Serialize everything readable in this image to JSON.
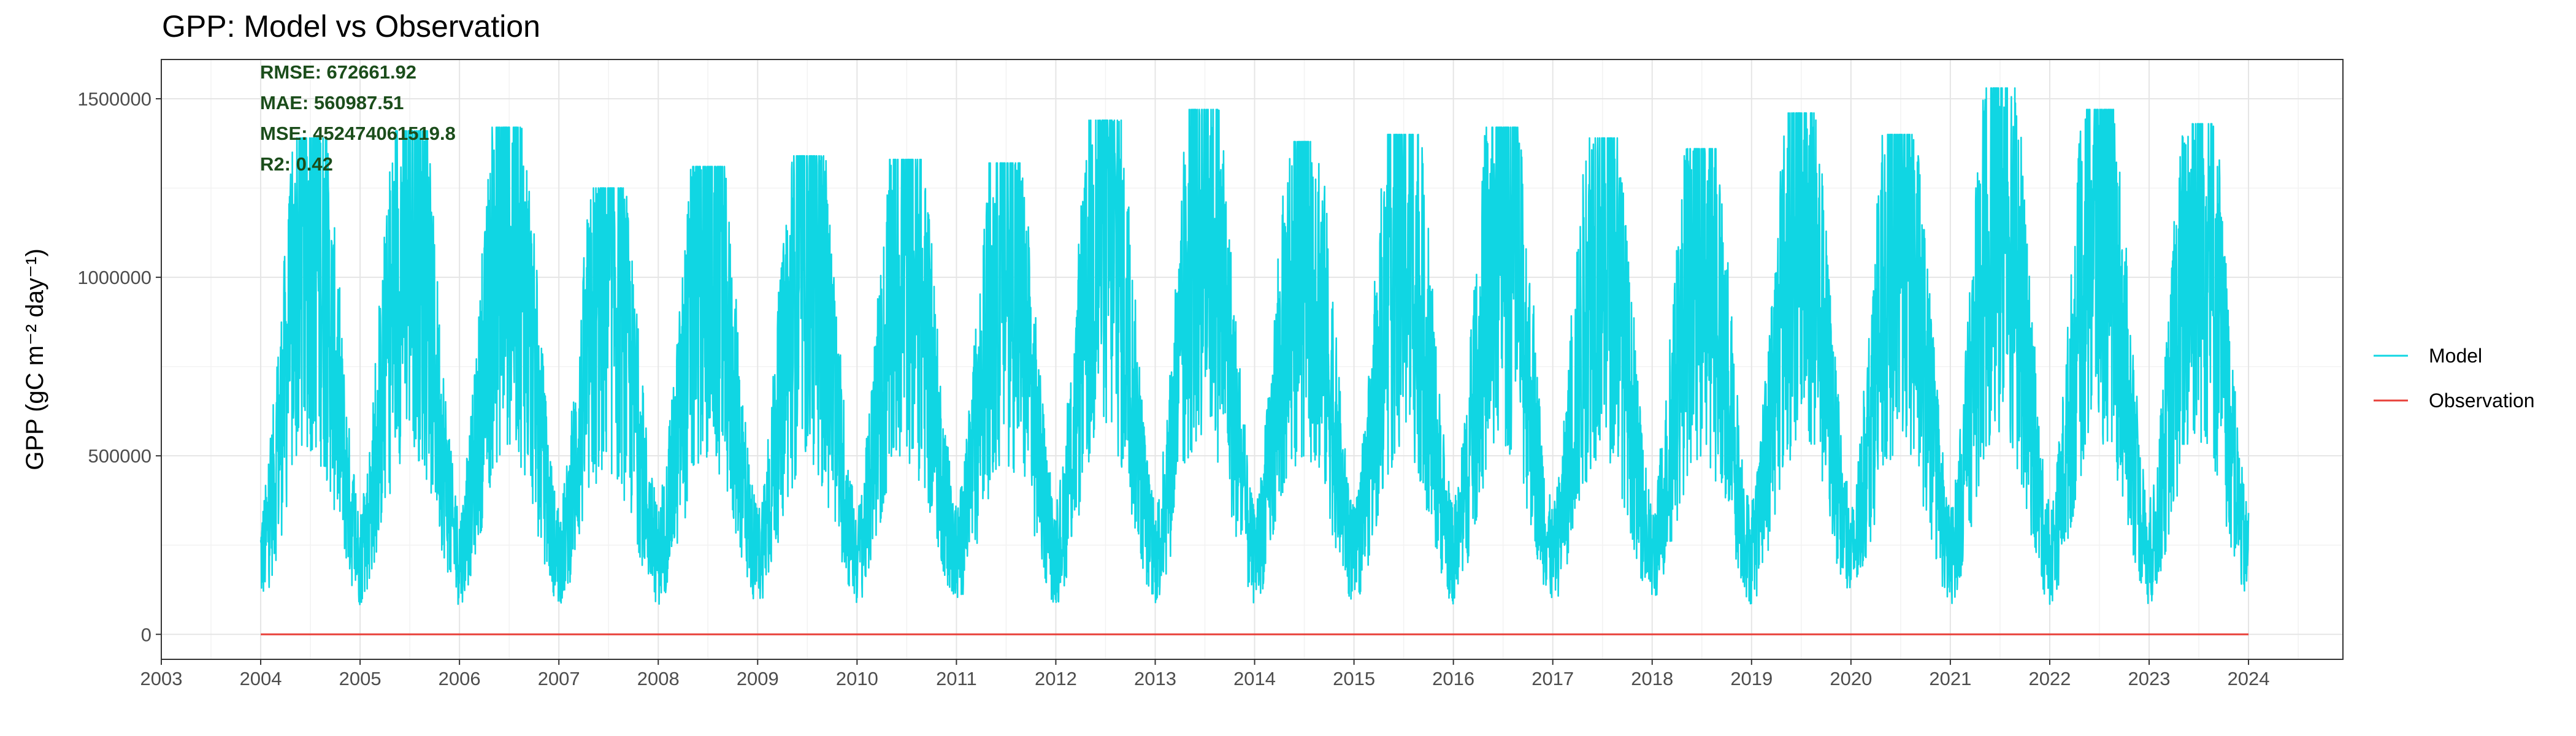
{
  "chart_data": {
    "type": "line",
    "title": "GPP: Model vs Observation",
    "ylabel": "GPP (gC m⁻² day⁻¹)",
    "xlabel": "",
    "xlim": [
      2003,
      2024.95
    ],
    "ylim": [
      -70000,
      1610000
    ],
    "x_ticks": [
      "2003",
      "2004",
      "2005",
      "2006",
      "2007",
      "2008",
      "2009",
      "2010",
      "2011",
      "2012",
      "2013",
      "2014",
      "2015",
      "2016",
      "2017",
      "2018",
      "2019",
      "2020",
      "2021",
      "2022",
      "2023",
      "2024"
    ],
    "y_ticks": [
      0,
      500000,
      1000000,
      1500000
    ],
    "y_tick_labels": [
      "0",
      "500000",
      "1000000",
      "1500000"
    ],
    "grid": true,
    "legend_position": "right",
    "stats": [
      "RMSE: 672661.92",
      "MAE: 560987.51",
      "MSE: 452474061519.8",
      "R2: 0.42"
    ],
    "series": [
      {
        "name": "Model",
        "color": "#10d6e3",
        "x_range": [
          2004.0,
          2024.0
        ],
        "seasonal_peaks": [
          {
            "year": 2004,
            "peak": 1390000
          },
          {
            "year": 2005,
            "peak": 1410000
          },
          {
            "year": 2006,
            "peak": 1420000
          },
          {
            "year": 2007,
            "peak": 1250000
          },
          {
            "year": 2008,
            "peak": 1310000
          },
          {
            "year": 2009,
            "peak": 1340000
          },
          {
            "year": 2010,
            "peak": 1330000
          },
          {
            "year": 2011,
            "peak": 1320000
          },
          {
            "year": 2012,
            "peak": 1440000
          },
          {
            "year": 2013,
            "peak": 1470000
          },
          {
            "year": 2014,
            "peak": 1380000
          },
          {
            "year": 2015,
            "peak": 1400000
          },
          {
            "year": 2016,
            "peak": 1420000
          },
          {
            "year": 2017,
            "peak": 1390000
          },
          {
            "year": 2018,
            "peak": 1360000
          },
          {
            "year": 2019,
            "peak": 1460000
          },
          {
            "year": 2020,
            "peak": 1400000
          },
          {
            "year": 2021,
            "peak": 1530000
          },
          {
            "year": 2022,
            "peak": 1470000
          },
          {
            "year": 2023,
            "peak": 1430000
          }
        ],
        "winter_min": 30000,
        "end_value": 340000
      },
      {
        "name": "Observation",
        "color": "#e8413a",
        "x": [
          2004.0,
          2024.0
        ],
        "values": [
          0,
          0
        ]
      }
    ]
  }
}
